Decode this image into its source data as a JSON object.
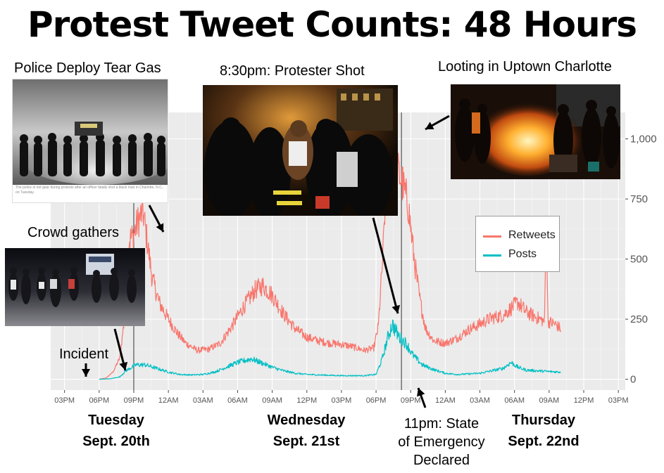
{
  "title": "Protest Tweet Counts: 48 Hours",
  "captions": {
    "tear_gas": "Police Deploy Tear Gas",
    "shot": "8:30pm: Protester Shot",
    "looting": "Looting in Uptown Charlotte",
    "crowd": "Crowd gathers",
    "incident": "Incident",
    "emergency": [
      "11pm: State",
      "of Emergency",
      "Declared"
    ]
  },
  "day_labels": [
    {
      "line1": "Tuesday",
      "line2": "Sept. 20th"
    },
    {
      "line1": "Wednesday",
      "line2": "Sept. 21st"
    },
    {
      "line1": "Thursday",
      "line2": "Sept. 22nd"
    }
  ],
  "photos": {
    "tear_gas": "police-line-tear-gas-photo",
    "tear_gas_caption": "The police in riot gear during protests after an officer fatally shot a black man in Charlotte, N.C., on Tuesday.",
    "shot": "protester-shot-photo",
    "looting": "looting-fire-photo",
    "crowd": "crowd-night-photo"
  },
  "colors": {
    "retweets": "#f8766d",
    "posts": "#00bfc4",
    "panel": "#ebebeb",
    "grid": "#ffffff"
  },
  "chart_data": {
    "type": "line",
    "x_axis": {
      "tick_labels": [
        "03PM",
        "06PM",
        "09PM",
        "12AM",
        "03AM",
        "06AM",
        "09AM",
        "12PM",
        "03PM",
        "06PM",
        "09PM",
        "12AM",
        "03AM",
        "06AM",
        "09AM",
        "12PM",
        "03PM"
      ],
      "range_hours": [
        -1.2,
        48.6
      ]
    },
    "y_axis": {
      "tick_labels": [
        "0",
        "250",
        "500",
        "750",
        "1,000"
      ],
      "ticks": [
        0,
        250,
        500,
        750,
        1000
      ],
      "range": [
        -45,
        1110
      ],
      "position": "right"
    },
    "grid": true,
    "legend": {
      "position": "right",
      "entries": [
        "Retweets",
        "Posts"
      ]
    },
    "vlines_hours": [
      6,
      29.2
    ],
    "series": [
      {
        "name": "Retweets",
        "points": [
          [
            3,
            0
          ],
          [
            3.6,
            5
          ],
          [
            4.2,
            30
          ],
          [
            4.8,
            90
          ],
          [
            5.3,
            300
          ],
          [
            5.6,
            580
          ],
          [
            6.0,
            600
          ],
          [
            6.3,
            650
          ],
          [
            6.8,
            700
          ],
          [
            7.2,
            560
          ],
          [
            7.6,
            420
          ],
          [
            8.2,
            320
          ],
          [
            9,
            250
          ],
          [
            9.8,
            190
          ],
          [
            10.5,
            150
          ],
          [
            11.5,
            120
          ],
          [
            12.5,
            125
          ],
          [
            13.5,
            150
          ],
          [
            14.5,
            220
          ],
          [
            15.5,
            300
          ],
          [
            16.5,
            370
          ],
          [
            17.2,
            390
          ],
          [
            18,
            350
          ],
          [
            19,
            270
          ],
          [
            20,
            210
          ],
          [
            21,
            175
          ],
          [
            22,
            160
          ],
          [
            23,
            150
          ],
          [
            24,
            145
          ],
          [
            25,
            135
          ],
          [
            26,
            120
          ],
          [
            26.8,
            130
          ],
          [
            27.2,
            220
          ],
          [
            27.6,
            520
          ],
          [
            27.9,
            850
          ],
          [
            28.2,
            960
          ],
          [
            28.6,
            890
          ],
          [
            29.2,
            830
          ],
          [
            29.8,
            720
          ],
          [
            30.3,
            500
          ],
          [
            30.8,
            330
          ],
          [
            31.3,
            210
          ],
          [
            32,
            160
          ],
          [
            33,
            150
          ],
          [
            34,
            170
          ],
          [
            35,
            205
          ],
          [
            36,
            230
          ],
          [
            37,
            255
          ],
          [
            38,
            265
          ],
          [
            38.8,
            300
          ],
          [
            39.3,
            320
          ],
          [
            40,
            280
          ],
          [
            41,
            255
          ],
          [
            41.6,
            240
          ],
          [
            41.75,
            680
          ],
          [
            41.9,
            240
          ],
          [
            42.5,
            230
          ],
          [
            43,
            210
          ]
        ]
      },
      {
        "name": "Posts",
        "points": [
          [
            3,
            0
          ],
          [
            4,
            2
          ],
          [
            4.8,
            10
          ],
          [
            5.3,
            35
          ],
          [
            6.2,
            60
          ],
          [
            7,
            60
          ],
          [
            8,
            45
          ],
          [
            9,
            30
          ],
          [
            10,
            20
          ],
          [
            11,
            18
          ],
          [
            12,
            20
          ],
          [
            13,
            30
          ],
          [
            14,
            50
          ],
          [
            15,
            70
          ],
          [
            16.2,
            85
          ],
          [
            17,
            70
          ],
          [
            18,
            50
          ],
          [
            19,
            35
          ],
          [
            20,
            25
          ],
          [
            21,
            20
          ],
          [
            22,
            18
          ],
          [
            24,
            15
          ],
          [
            26,
            15
          ],
          [
            27,
            20
          ],
          [
            27.5,
            80
          ],
          [
            28,
            170
          ],
          [
            28.4,
            230
          ],
          [
            29,
            175
          ],
          [
            29.6,
            150
          ],
          [
            30.2,
            100
          ],
          [
            31,
            60
          ],
          [
            32,
            40
          ],
          [
            33,
            25
          ],
          [
            34,
            20
          ],
          [
            35,
            22
          ],
          [
            36,
            25
          ],
          [
            37,
            35
          ],
          [
            38,
            45
          ],
          [
            38.7,
            70
          ],
          [
            39.3,
            50
          ],
          [
            40,
            38
          ],
          [
            41,
            35
          ],
          [
            42,
            32
          ],
          [
            43,
            30
          ]
        ]
      }
    ]
  }
}
